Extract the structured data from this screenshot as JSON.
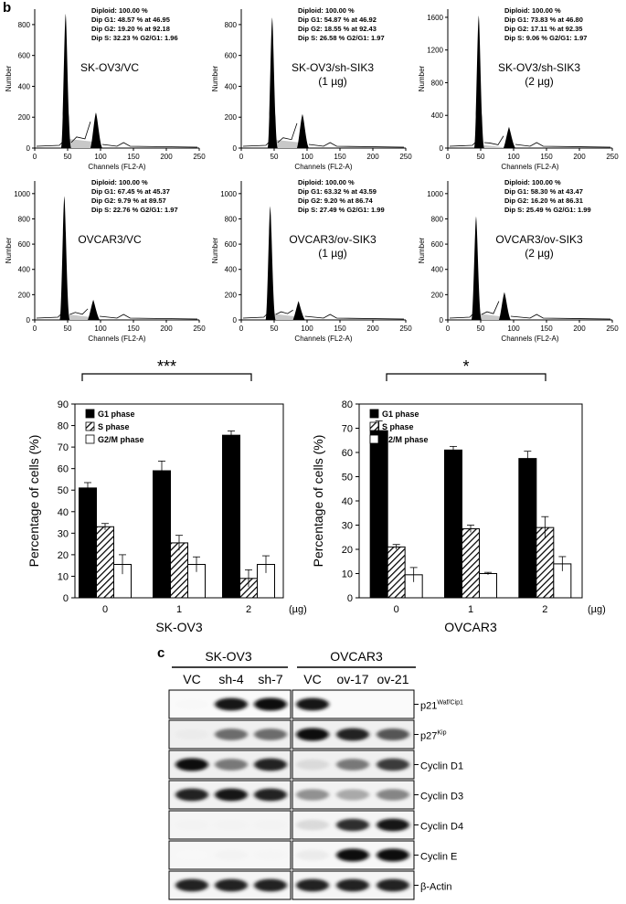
{
  "panel_b_label": "b",
  "panel_c_label": "c",
  "histograms": {
    "ylabel": "Number",
    "xlabel": "Channels (FL2-A)",
    "xticks": [
      "0",
      "50",
      "100",
      "150",
      "200",
      "250"
    ],
    "panels": [
      {
        "sample": [
          "SK-OV3/VC"
        ],
        "yticks": [
          "0",
          "200",
          "400",
          "600",
          "800"
        ],
        "ymax": 900,
        "stats": [
          "Diploid: 100.00 %",
          "Dip G1: 48.57 % at 46.95",
          "Dip G2: 19.20 % at 92.18",
          "Dip S: 32.23 %   G2/G1: 1.96"
        ],
        "g1": {
          "pos": 47,
          "height": 870
        },
        "g2": {
          "pos": 93,
          "height": 230
        },
        "sfill": 60
      },
      {
        "sample": [
          "SK-OV3/sh-SIK3",
          "(1 µg)"
        ],
        "yticks": [
          "0",
          "200",
          "400",
          "600",
          "800"
        ],
        "ymax": 900,
        "stats": [
          "Diploid: 100.00 %",
          "Dip G1: 54.87 % at 46.92",
          "Dip G2: 18.55 % at 92.43",
          "Dip S: 26.58 %   G2/G1: 1.97"
        ],
        "g1": {
          "pos": 47,
          "height": 845
        },
        "g2": {
          "pos": 93,
          "height": 220
        },
        "sfill": 55
      },
      {
        "sample": [
          "SK-OV3/sh-SIK3",
          "(2 µg)"
        ],
        "yticks": [
          "0",
          "400",
          "800",
          "1200",
          "1600"
        ],
        "ymax": 1700,
        "stats": [
          "Diploid: 100.00 %",
          "Dip G1: 73.83 % at 46.80",
          "Dip G2: 17.11 % at 92.35",
          "Dip S: 9.06 %   G2/G1: 1.97"
        ],
        "g1": {
          "pos": 47,
          "height": 1620
        },
        "g2": {
          "pos": 93,
          "height": 260
        },
        "sfill": 40
      },
      {
        "sample": [
          "OVCAR3/VC"
        ],
        "yticks": [
          "0",
          "200",
          "400",
          "600",
          "800",
          "1000"
        ],
        "ymax": 1100,
        "stats": [
          "Diploid: 100.00 %",
          "Dip G1: 67.45 % at 45.37",
          "Dip G2: 9.79 % at 89.57",
          "Dip S: 22.76 %   G2/G1: 1.97"
        ],
        "g1": {
          "pos": 45,
          "height": 980
        },
        "g2": {
          "pos": 89,
          "height": 160
        },
        "sfill": 45
      },
      {
        "sample": [
          "OVCAR3/ov-SIK3",
          "(1 µg)"
        ],
        "yticks": [
          "0",
          "200",
          "400",
          "600",
          "800",
          "1000"
        ],
        "ymax": 1100,
        "stats": [
          "Diploid: 100.00 %",
          "Dip G1: 63.32 % at 43.59",
          "Dip G2: 9.20 % at 86.74",
          "Dip S: 27.49 %   G2/G1: 1.99"
        ],
        "g1": {
          "pos": 44,
          "height": 900
        },
        "g2": {
          "pos": 87,
          "height": 150
        },
        "sfill": 50
      },
      {
        "sample": [
          "OVCAR3/ov-SIK3",
          "(2 µg)"
        ],
        "yticks": [
          "0",
          "200",
          "400",
          "600",
          "800",
          "1000"
        ],
        "ymax": 1100,
        "stats": [
          "Diploid: 100.00 %",
          "Dip G1: 58.30 % at 43.47",
          "Dip G2: 16.20 % at 86.31",
          "Dip S: 25.49 %   G2/G1: 1.99"
        ],
        "g1": {
          "pos": 43,
          "height": 820
        },
        "g2": {
          "pos": 86,
          "height": 220
        },
        "sfill": 50
      }
    ]
  },
  "chart_data": [
    {
      "type": "bar",
      "significance": "***",
      "categories": [
        "0",
        "1",
        "2"
      ],
      "unit_label": "(µg)",
      "xlabel": "SK-OV3",
      "ylabel": "Percentage of cells (%)",
      "ylim": [
        0,
        90
      ],
      "yticks": [
        "0",
        "10",
        "20",
        "30",
        "40",
        "50",
        "60",
        "70",
        "80",
        "90"
      ],
      "legend": "top-left",
      "series": [
        {
          "name": "G1 phase",
          "values": [
            51,
            59,
            75.5
          ],
          "errors": [
            2.5,
            4.5,
            2
          ],
          "color": "#000000",
          "pattern": "solid"
        },
        {
          "name": "S phase",
          "values": [
            33,
            25.5,
            9
          ],
          "errors": [
            1.5,
            3.5,
            4
          ],
          "color": "#888888",
          "pattern": "hatch"
        },
        {
          "name": "G2/M phase",
          "values": [
            15.5,
            15.5,
            15.5
          ],
          "errors": [
            4.5,
            3.5,
            4
          ],
          "color": "#ffffff",
          "pattern": "open"
        }
      ]
    },
    {
      "type": "bar",
      "significance": "*",
      "categories": [
        "0",
        "1",
        "2"
      ],
      "unit_label": "(µg)",
      "xlabel": "OVCAR3",
      "ylabel": "Percentage of cells (%)",
      "ylim": [
        0,
        80
      ],
      "yticks": [
        "0",
        "10",
        "20",
        "30",
        "40",
        "50",
        "60",
        "70",
        "80"
      ],
      "legend": "top-left",
      "series": [
        {
          "name": "G1 phase",
          "values": [
            69,
            61,
            57.5
          ],
          "errors": [
            4,
            1.5,
            3
          ],
          "color": "#000000",
          "pattern": "solid"
        },
        {
          "name": "S phase",
          "values": [
            21,
            28.5,
            29
          ],
          "errors": [
            1,
            1.5,
            4.5
          ],
          "color": "#888888",
          "pattern": "hatch"
        },
        {
          "name": "G2/M phase",
          "values": [
            9.5,
            10,
            14
          ],
          "errors": [
            3,
            0.5,
            3
          ],
          "color": "#ffffff",
          "pattern": "open"
        }
      ]
    }
  ],
  "blot": {
    "group_a": "SK-OV3",
    "group_b": "OVCAR3",
    "lanes_a": [
      "VC",
      "sh-4",
      "sh-7"
    ],
    "lanes_b": [
      "VC",
      "ov-17",
      "ov-21"
    ],
    "rows": [
      {
        "label": "p21",
        "sup": "Waf/Cip1",
        "a": [
          0.03,
          0.95,
          1.0
        ],
        "b": [
          0.95,
          0,
          0
        ],
        "bg": 0.02
      },
      {
        "label": "p27",
        "sup": "Kip",
        "a": [
          0.08,
          0.6,
          0.6
        ],
        "b": [
          1.0,
          0.9,
          0.7
        ],
        "bg": 0.06
      },
      {
        "label": "Cyclin D1",
        "sup": "",
        "a": [
          1.0,
          0.55,
          0.9
        ],
        "b": [
          0.15,
          0.55,
          0.8
        ],
        "bg": 0.06
      },
      {
        "label": "Cyclin D3",
        "sup": "",
        "a": [
          0.9,
          0.95,
          0.9
        ],
        "b": [
          0.45,
          0.35,
          0.5
        ],
        "bg": 0.05
      },
      {
        "label": "Cyclin D4",
        "sup": "",
        "a": [
          0.05,
          0.05,
          0.05
        ],
        "b": [
          0.15,
          0.85,
          0.95
        ],
        "bg": 0.04
      },
      {
        "label": "Cyclin E",
        "sup": "",
        "a": [
          0.03,
          0.05,
          0.04
        ],
        "b": [
          0.08,
          1.0,
          1.0
        ],
        "bg": 0.03
      },
      {
        "label": "β-Actin",
        "sup": "",
        "a": [
          0.9,
          0.9,
          0.9
        ],
        "b": [
          0.9,
          0.9,
          0.9
        ],
        "bg": 0.04
      }
    ]
  }
}
